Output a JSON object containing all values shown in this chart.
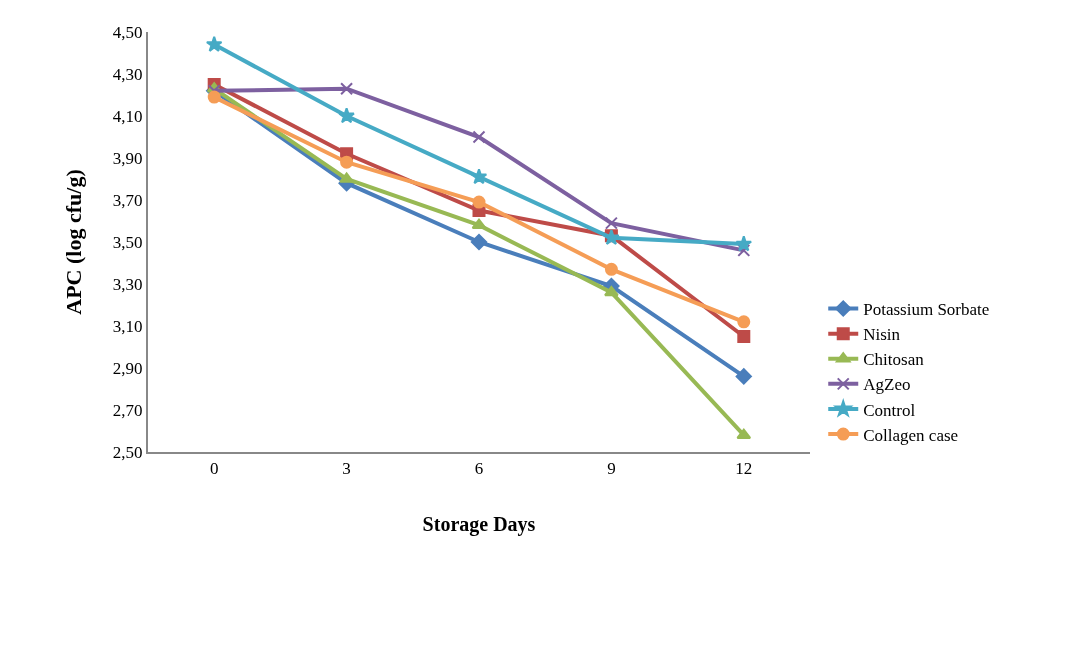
{
  "chart_data": {
    "type": "line",
    "xlabel": "Storage Days",
    "ylabel": "APC (log cfu/g)",
    "categories": [
      "0",
      "3",
      "6",
      "9",
      "12"
    ],
    "ylim": [
      2.5,
      4.5
    ],
    "yticks": [
      {
        "value": 2.5,
        "label": "2,50"
      },
      {
        "value": 2.7,
        "label": "2,70"
      },
      {
        "value": 2.9,
        "label": "2,90"
      },
      {
        "value": 3.1,
        "label": "3,10"
      },
      {
        "value": 3.3,
        "label": "3,30"
      },
      {
        "value": 3.5,
        "label": "3,50"
      },
      {
        "value": 3.7,
        "label": "3,70"
      },
      {
        "value": 3.9,
        "label": "3,90"
      },
      {
        "value": 4.1,
        "label": "4,10"
      },
      {
        "value": 4.3,
        "label": "4,30"
      },
      {
        "value": 4.5,
        "label": "4,50"
      }
    ],
    "grid": false,
    "legend": "bottom right",
    "series": [
      {
        "name": "Potassium Sorbate",
        "color": "#4a7ebb",
        "marker": "diamond",
        "values": [
          4.22,
          3.78,
          3.5,
          3.29,
          2.86
        ]
      },
      {
        "name": "Nisin",
        "color": "#be4b48",
        "marker": "square",
        "values": [
          4.25,
          3.92,
          3.65,
          3.53,
          3.05
        ]
      },
      {
        "name": "Chitosan",
        "color": "#98b954",
        "marker": "triangle",
        "values": [
          4.23,
          3.8,
          3.58,
          3.26,
          2.58
        ]
      },
      {
        "name": "AgZeo",
        "color": "#7d60a0",
        "marker": "cross",
        "values": [
          4.22,
          4.23,
          4.0,
          3.59,
          3.46
        ]
      },
      {
        "name": "Control",
        "color": "#46aac5",
        "marker": "star",
        "values": [
          4.44,
          4.1,
          3.81,
          3.52,
          3.49
        ]
      },
      {
        "name": "Collagen case",
        "color": "#f59d56",
        "marker": "circle",
        "values": [
          4.19,
          3.88,
          3.69,
          3.37,
          3.12
        ]
      }
    ]
  }
}
